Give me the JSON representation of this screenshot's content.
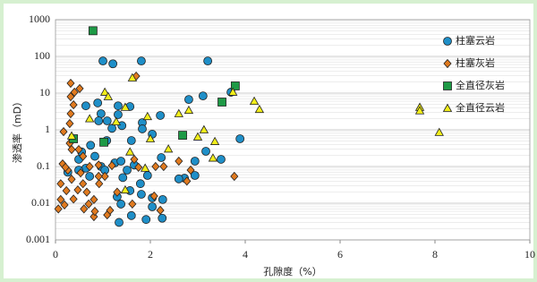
{
  "chart_data": {
    "type": "scatter",
    "x_label": "孔隙度（%）",
    "y_label": "渗透率（mD）",
    "xlim": [
      0,
      10
    ],
    "xticks": [
      0,
      2,
      4,
      6,
      8,
      10
    ],
    "ylim": [
      0.001,
      1000
    ],
    "yticks": [
      0.001,
      0.01,
      0.1,
      1,
      10,
      100,
      1000
    ],
    "y_log": true,
    "grid": true,
    "minor_grid": true,
    "legend_position": "upper-right",
    "series": [
      {
        "name": "柱塞云岩",
        "color": "#1f8fc8",
        "marker": "circle",
        "x": [
          1.0,
          1.21,
          1.81,
          3.21,
          3.7,
          3.11,
          2.81,
          2.21,
          1.83,
          1.83,
          2.04,
          1.57,
          1.32,
          1.32,
          0.96,
          0.91,
          0.64,
          0.89,
          1.09,
          1.19,
          1.4,
          1.6,
          1.08,
          0.74,
          0.55,
          0.83,
          1.25,
          0.96,
          0.64,
          0.49,
          0.26,
          0.72,
          1.04,
          1.38,
          1.66,
          1.94,
          1.51,
          1.42,
          1.79,
          1.57,
          1.3,
          1.38,
          1.34,
          1.6,
          1.91,
          2.25,
          2.26,
          2.04,
          2.04,
          1.81,
          2.72,
          2.94,
          2.94,
          3.49,
          3.89,
          3.17,
          2.6,
          2.23,
          0.49
        ],
        "values": [
          75,
          63,
          75,
          75,
          10.6,
          8.4,
          6.7,
          2.46,
          1.57,
          1.06,
          0.76,
          4.3,
          4.5,
          2.6,
          2.75,
          1.75,
          4.5,
          5.4,
          1.75,
          1.1,
          1.3,
          0.51,
          0.51,
          0.38,
          0.25,
          0.19,
          0.125,
          0.1,
          0.09,
          0.08,
          0.07,
          0.054,
          0.08,
          0.14,
          0.11,
          0.057,
          0.08,
          0.05,
          0.034,
          0.022,
          0.015,
          0.0095,
          0.003,
          0.0046,
          0.0036,
          0.0039,
          0.0126,
          0.014,
          0.008,
          0.0175,
          0.048,
          0.057,
          0.14,
          0.157,
          0.57,
          0.26,
          0.046,
          0.175,
          0.157
        ]
      },
      {
        "name": "柱塞灰岩",
        "color": "#e07a1f",
        "marker": "diamond",
        "x": [
          0.32,
          0.32,
          0.4,
          0.51,
          0.32,
          0.38,
          0.17,
          0.3,
          0.34,
          0.49,
          0.58,
          0.15,
          0.26,
          0.11,
          0.23,
          0.11,
          0.19,
          0.38,
          0.47,
          0.58,
          0.66,
          0.34,
          0.53,
          0.72,
          0.91,
          0.81,
          0.92,
          1.04,
          0.91,
          1.19,
          1.66,
          1.75,
          2.11,
          2.28,
          2.6,
          2.85,
          2.77,
          1.09,
          1.15,
          0.81,
          0.83,
          1.3,
          1.62,
          2.21,
          2.08,
          3.77,
          1.7,
          0.3,
          0.21,
          0.06,
          0.7,
          0.6
        ],
        "values": [
          18.5,
          8,
          10.6,
          13.3,
          2.75,
          4.8,
          0.89,
          0.43,
          0.29,
          0.29,
          0.19,
          0.118,
          0.08,
          0.034,
          0.022,
          0.0126,
          0.009,
          0.013,
          0.023,
          0.034,
          0.02,
          0.045,
          0.067,
          0.1,
          0.11,
          0.0126,
          0.034,
          0.054,
          0.054,
          0.106,
          0.157,
          0.095,
          0.1,
          0.1,
          0.14,
          0.08,
          0.04,
          0.0048,
          0.0064,
          0.0043,
          0.006,
          0.02,
          0.0095,
          0.0064,
          0.0157,
          0.054,
          29,
          1.48,
          0.095,
          0.007,
          0.0095,
          0.007
        ]
      },
      {
        "name": "全直径灰岩",
        "color": "#1e9a46",
        "marker": "square",
        "x": [
          0.79,
          3.51,
          3.79,
          2.68,
          1.02,
          0.38
        ],
        "values": [
          500,
          5.7,
          15.7,
          0.71,
          0.46,
          0.57
        ]
      },
      {
        "name": "全直径云岩",
        "color": "#f2ee1a",
        "marker": "triangle",
        "x": [
          7.68,
          7.68,
          8.09,
          4.3,
          4.19,
          3.74,
          2.81,
          2.6,
          3.13,
          3.36,
          3.0,
          3.32,
          2.38,
          1.94,
          1.62,
          1.47,
          1.04,
          1.11,
          1.28,
          1.57,
          1.47,
          1.89,
          0.72,
          0.34,
          2.0
        ],
        "values": [
          4.1,
          3.3,
          0.85,
          3.6,
          6,
          10.6,
          3.4,
          2.75,
          1,
          0.48,
          0.64,
          0.17,
          0.3,
          2.3,
          26,
          4.1,
          10.6,
          8,
          1.66,
          0.25,
          0.023,
          0.09,
          2,
          0.68,
          0.57
        ]
      }
    ]
  }
}
